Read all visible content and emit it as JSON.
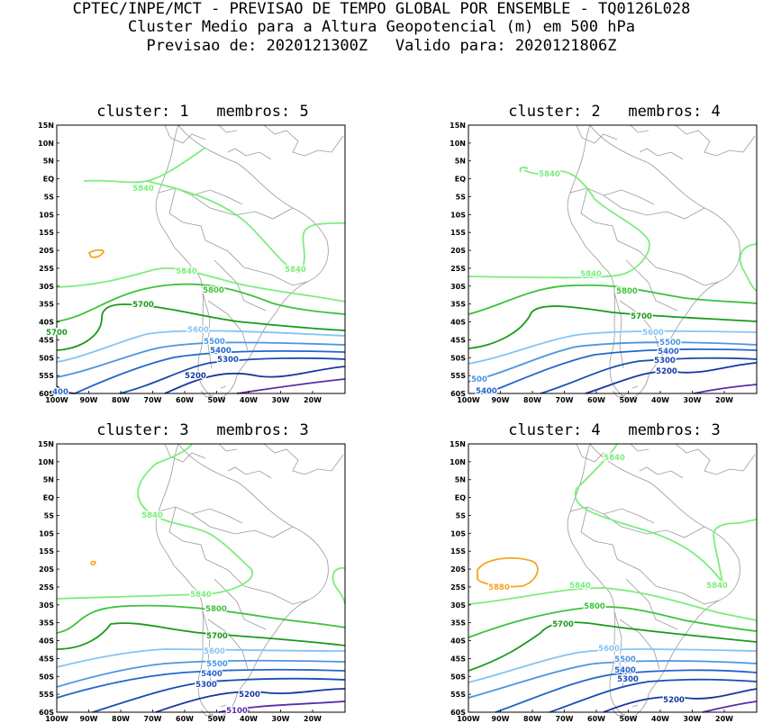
{
  "header": {
    "line1": "CPTEC/INPE/MCT - PREVISAO DE TEMPO GLOBAL POR ENSEMBLE - TQ0126L028",
    "line2": "Cluster Medio para a Altura Geopotencial (m) em 500 hPa",
    "line3": "Previsao de: 2020121300Z   Valido para: 2020121806Z"
  },
  "axes": {
    "lat_labels": [
      "15N",
      "10N",
      "5N",
      "EQ",
      "5S",
      "10S",
      "15S",
      "20S",
      "25S",
      "30S",
      "35S",
      "40S",
      "45S",
      "50S",
      "55S",
      "60S"
    ],
    "lon_labels": [
      "100W",
      "90W",
      "80W",
      "70W",
      "60W",
      "50W",
      "40W",
      "30W",
      "20W"
    ]
  },
  "colors": {
    "c5880": "#f5a623",
    "c5840": "#7ced7c",
    "c5800": "#3cc33c",
    "c5700": "#1a9a1a",
    "c5600": "#86c4f2",
    "c5500": "#4a96e0",
    "c5400": "#2266cc",
    "c5300": "#1a4bb4",
    "c5200": "#1538a0",
    "c5100": "#5a2ea8",
    "coast": "#9a9a9a"
  },
  "panels": [
    {
      "title": "cluster: 1   membros: 5",
      "labels": [
        "5840",
        "5840",
        "5840",
        "5800",
        "5700",
        "5600",
        "5500",
        "5400",
        "5300",
        "5200",
        "400",
        "5700"
      ]
    },
    {
      "title": "cluster: 2   membros: 4",
      "labels": [
        "5840",
        "5840",
        "5800",
        "5700",
        "5600",
        "5500",
        "5400",
        "5300",
        "5200",
        "500",
        "5400"
      ]
    },
    {
      "title": "cluster: 3   membros: 3",
      "labels": [
        "5840",
        "5840",
        "5800",
        "5700",
        "5600",
        "5500",
        "5400",
        "5300",
        "5200",
        "5100"
      ]
    },
    {
      "title": "cluster: 4   membros: 3",
      "labels": [
        "5840",
        "5840",
        "5880",
        "5840",
        "5800",
        "5700",
        "5600",
        "5500",
        "5400",
        "5300",
        "5200"
      ]
    }
  ]
}
